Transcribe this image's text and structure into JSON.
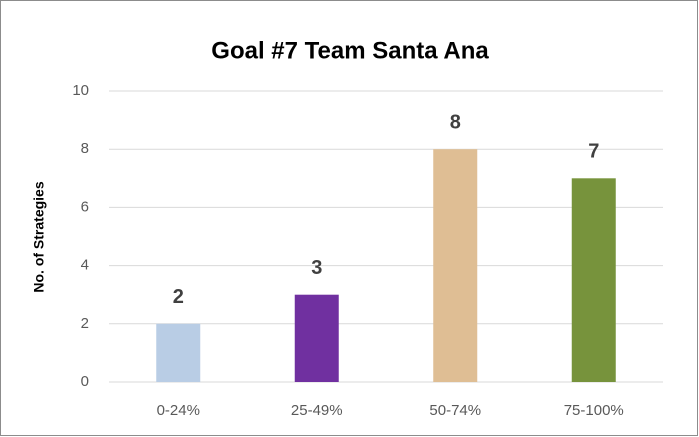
{
  "chart_data": {
    "type": "bar",
    "title": "Goal #7 Team Santa Ana",
    "y_label": "No. of Strategies",
    "categories": [
      "0-24%",
      "25-49%",
      "50-74%",
      "75-100%"
    ],
    "values": [
      2,
      3,
      8,
      7
    ],
    "colors": [
      "#b9cde5",
      "#7030a0",
      "#dfbe94",
      "#77933c"
    ],
    "ylim": [
      0,
      10
    ],
    "yticks": [
      0,
      2,
      4,
      6,
      8,
      10
    ],
    "grid": true
  }
}
